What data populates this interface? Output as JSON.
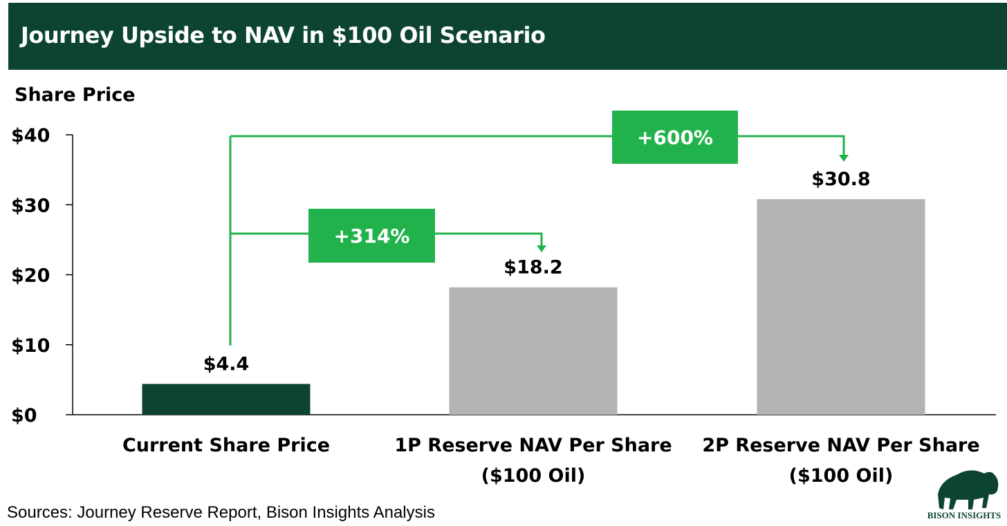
{
  "chart_data": {
    "type": "bar",
    "title": "Journey Upside to NAV in $100 Oil Scenario",
    "ylabel": "Share Price",
    "xlabel": "",
    "ylim": [
      0,
      40
    ],
    "yticks": [
      0,
      10,
      20,
      30,
      40
    ],
    "ytick_labels": [
      "$0",
      "$10",
      "$20",
      "$30",
      "$40"
    ],
    "categories": [
      [
        "Current Share Price"
      ],
      [
        "1P Reserve NAV Per Share",
        "($100 Oil)"
      ],
      [
        "2P Reserve NAV Per Share",
        "($100 Oil)"
      ]
    ],
    "values": [
      4.4,
      18.2,
      30.8
    ],
    "data_labels": [
      "$4.4",
      "$18.2",
      "$30.8"
    ],
    "bar_colors": [
      "#0c4431",
      "#b3b3b3",
      "#b3b3b3"
    ],
    "annotations": [
      {
        "text": "+314%",
        "from": 0,
        "to": 1
      },
      {
        "text": "+600%",
        "from": 0,
        "to": 2
      }
    ],
    "annotation_color": "#22b24c",
    "grid": false
  },
  "source": "Sources: Journey Reserve Report, Bison Insights Analysis",
  "logo_text": "BISON INSIGHTS"
}
